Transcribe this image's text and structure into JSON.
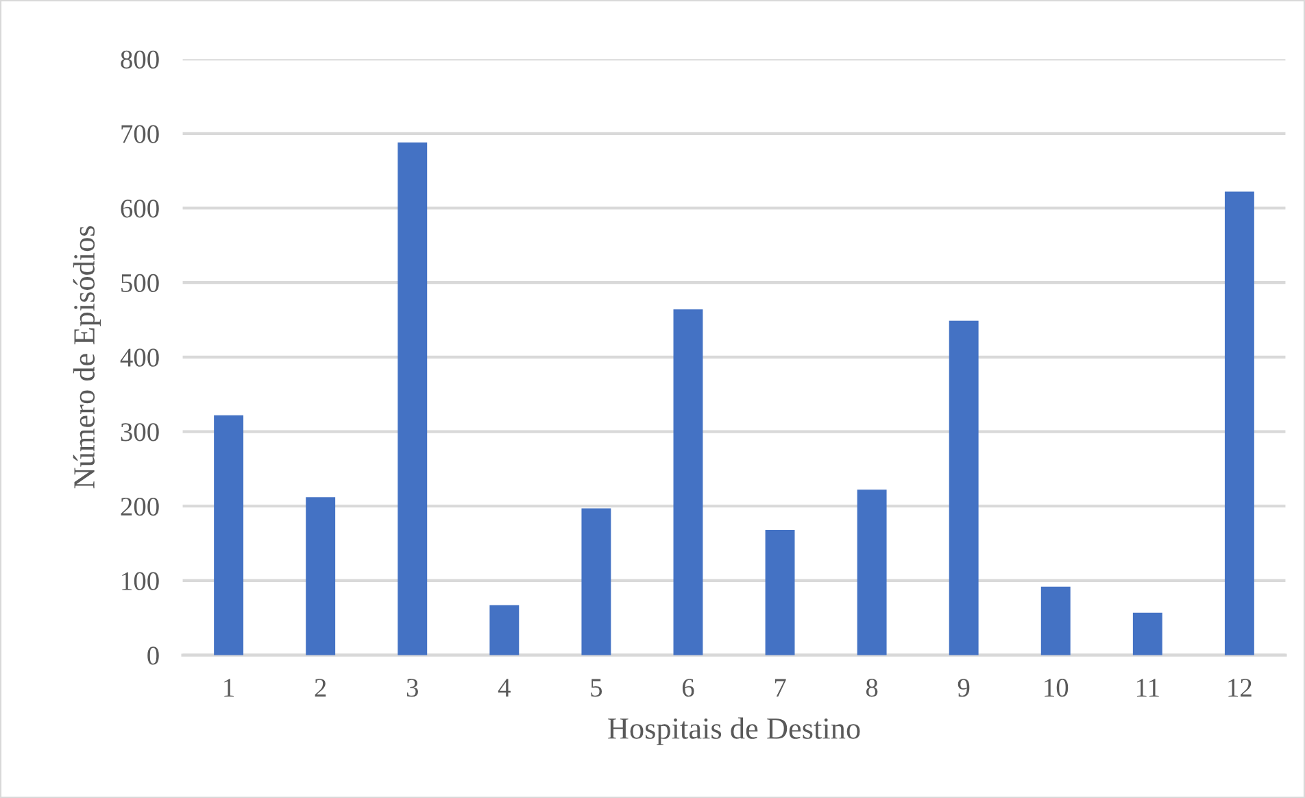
{
  "chart_data": {
    "type": "bar",
    "xlabel": "Hospitais de Destino",
    "ylabel": "Número de Episódios",
    "categories": [
      "1",
      "2",
      "3",
      "4",
      "5",
      "6",
      "7",
      "8",
      "9",
      "10",
      "11",
      "12"
    ],
    "values": [
      322,
      212,
      688,
      67,
      197,
      464,
      168,
      222,
      449,
      92,
      57,
      622
    ],
    "color": "#4472c4",
    "ylim": [
      0,
      800
    ],
    "yticks": [
      0,
      100,
      200,
      300,
      400,
      500,
      600,
      700,
      800
    ],
    "grid": "y"
  }
}
